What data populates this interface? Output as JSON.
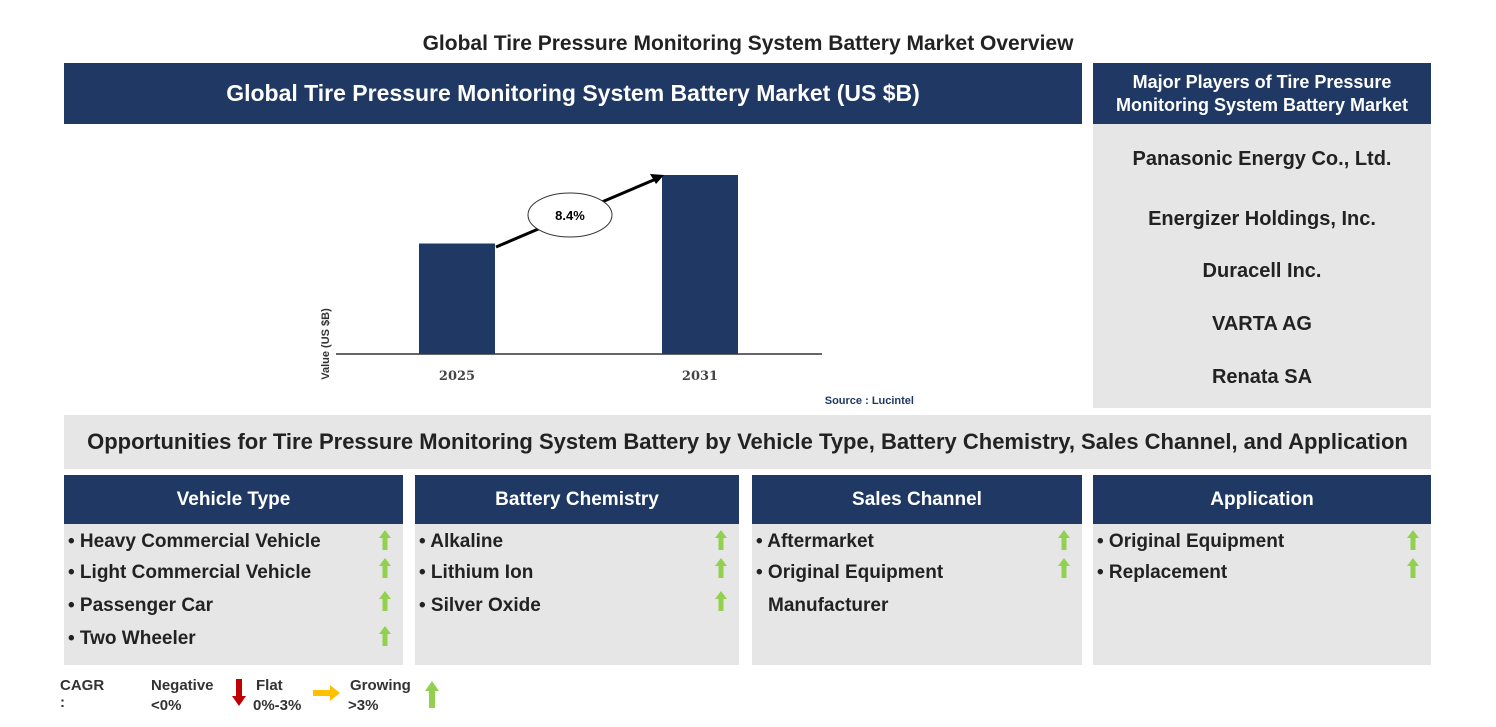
{
  "title": "Global Tire Pressure Monitoring System Battery Market Overview",
  "chart_header": "Global Tire Pressure Monitoring System Battery Market (US $B)",
  "chart_data": {
    "type": "bar",
    "categories": [
      "2025",
      "2031"
    ],
    "values": [
      1.0,
      1.62
    ],
    "ylabel": "Value (US $B)",
    "xlabel": "",
    "annotation": "8.4%",
    "source": "Source : Lucintel",
    "bar_color": "#1f3864",
    "grid": false
  },
  "players": {
    "header": "Major Players of Tire Pressure Monitoring System Battery Market",
    "items": [
      "Panasonic Energy Co., Ltd.",
      "Energizer Holdings, Inc.",
      "Duracell Inc.",
      "VARTA AG",
      "Renata SA"
    ]
  },
  "opportunities_title": "Opportunities for Tire Pressure Monitoring System Battery by Vehicle Type, Battery Chemistry, Sales Channel, and Application",
  "segments": [
    {
      "title": "Vehicle Type",
      "items": [
        "• Heavy Commercial Vehicle",
        "• Light Commercial Vehicle",
        "• Passenger Car",
        "• Two Wheeler"
      ],
      "trend": [
        "growing",
        "growing",
        "growing",
        "growing"
      ]
    },
    {
      "title": "Battery Chemistry",
      "items": [
        "• Alkaline",
        "• Lithium Ion",
        "• Silver Oxide"
      ],
      "trend": [
        "growing",
        "growing",
        "growing"
      ]
    },
    {
      "title": "Sales Channel",
      "items": [
        "• Aftermarket",
        "• Original Equipment",
        "Manufacturer"
      ],
      "trend": [
        "growing",
        "growing"
      ]
    },
    {
      "title": "Application",
      "items": [
        "• Original Equipment",
        "• Replacement"
      ],
      "trend": [
        "growing",
        "growing"
      ]
    }
  ],
  "legend": {
    "label": "CAGR  :",
    "negative": "Negative",
    "negative_range": "<0%",
    "flat": "Flat",
    "flat_range": "0%-3%",
    "growing": "Growing",
    "growing_range": ">3%",
    "colors": {
      "negative": "#c00000",
      "flat": "#ffc000",
      "growing": "#92d050"
    }
  }
}
